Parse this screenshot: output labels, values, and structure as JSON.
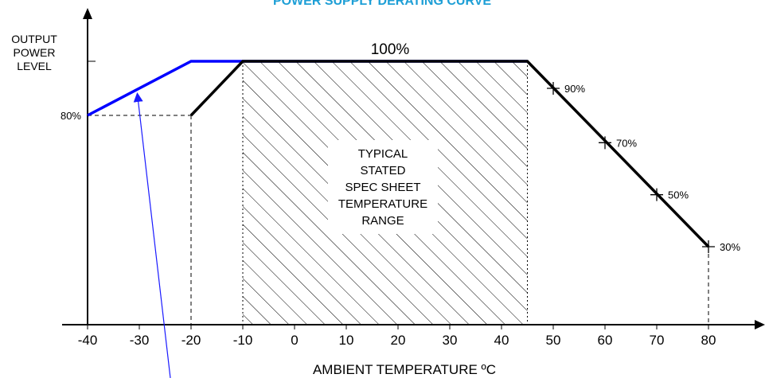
{
  "chart_data": {
    "type": "line",
    "title": "POWER SUPPLY DERATING CURVE",
    "xlabel": "AMBIENT TEMPERATURE ºC",
    "ylabel": [
      "OUTPUT",
      "POWER",
      "LEVEL"
    ],
    "x_ticks": [
      -40,
      -30,
      -20,
      -10,
      0,
      10,
      20,
      30,
      40,
      50,
      60,
      70,
      80
    ],
    "xlim": [
      -40,
      80
    ],
    "ylim": [
      0,
      100
    ],
    "shaded_region": {
      "x_range": [
        -10,
        45
      ],
      "label": [
        "TYPICAL",
        "STATED",
        "SPEC SHEET",
        "TEMPERATURE",
        "RANGE"
      ]
    },
    "series": [
      {
        "color": "#0000ff",
        "points": [
          [
            -40,
            80
          ],
          [
            -20,
            100
          ],
          [
            45,
            100
          ]
        ]
      },
      {
        "color": "#000000",
        "points": [
          [
            -20,
            80
          ],
          [
            -10,
            100
          ],
          [
            45,
            100
          ],
          [
            80,
            30
          ]
        ]
      }
    ],
    "annotations": [
      {
        "text": "100%",
        "x": 17,
        "y": 100
      },
      {
        "text": "90%",
        "x": 50,
        "y": 90
      },
      {
        "text": "70%",
        "x": 60,
        "y": 70
      },
      {
        "text": "50%",
        "x": 70,
        "y": 50
      },
      {
        "text": "30%",
        "x": 80,
        "y": 30
      },
      {
        "text": "80%",
        "x": -40,
        "y": 80
      }
    ],
    "markers": [
      [
        50,
        90
      ],
      [
        60,
        70
      ],
      [
        70,
        50
      ],
      [
        80,
        30
      ]
    ],
    "blue_color": "#0000ff",
    "title_color": "#1e9fd6",
    "arrow_color": "#1a1aff"
  }
}
